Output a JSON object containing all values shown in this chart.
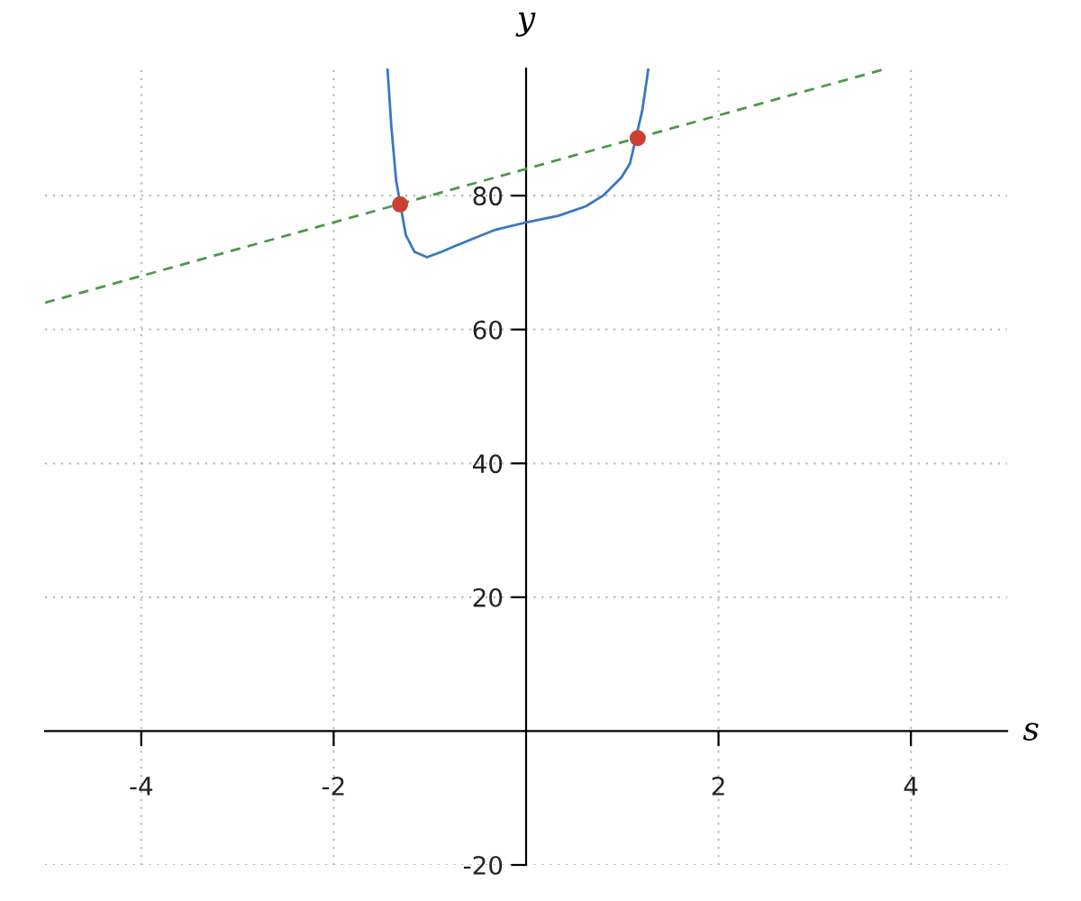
{
  "chart_data": {
    "type": "line",
    "xlabel": "s",
    "ylabel": "y",
    "xlim": [
      -5,
      5
    ],
    "ylim": [
      -20,
      99
    ],
    "xticks": [
      -4,
      -2,
      2,
      4
    ],
    "yticks": [
      -20,
      20,
      40,
      60,
      80
    ],
    "grid": true,
    "series": [
      {
        "color": "#3a78c0",
        "line_style": "solid",
        "x": [
          -1.44,
          -1.4,
          -1.35,
          -1.25,
          -1.16,
          -1.03,
          -0.88,
          -0.6,
          -0.32,
          0,
          0.34,
          0.62,
          0.8,
          0.99,
          1.08,
          1.21,
          1.27
        ],
        "values": [
          98.9,
          90.2,
          82.2,
          74.1,
          71.6,
          70.8,
          71.6,
          73.3,
          74.9,
          76.0,
          77.0,
          78.4,
          80.0,
          82.7,
          84.8,
          92.9,
          98.9
        ]
      },
      {
        "color": "#4a9a4a",
        "line_style": "dashed",
        "x": [
          -5,
          3.75
        ],
        "values": [
          64,
          99
        ]
      },
      {
        "type": "scatter",
        "color": "#cc3f33",
        "marker": "circle",
        "x": [
          -1.31,
          1.16
        ],
        "values": [
          78.7,
          88.6
        ]
      }
    ]
  }
}
